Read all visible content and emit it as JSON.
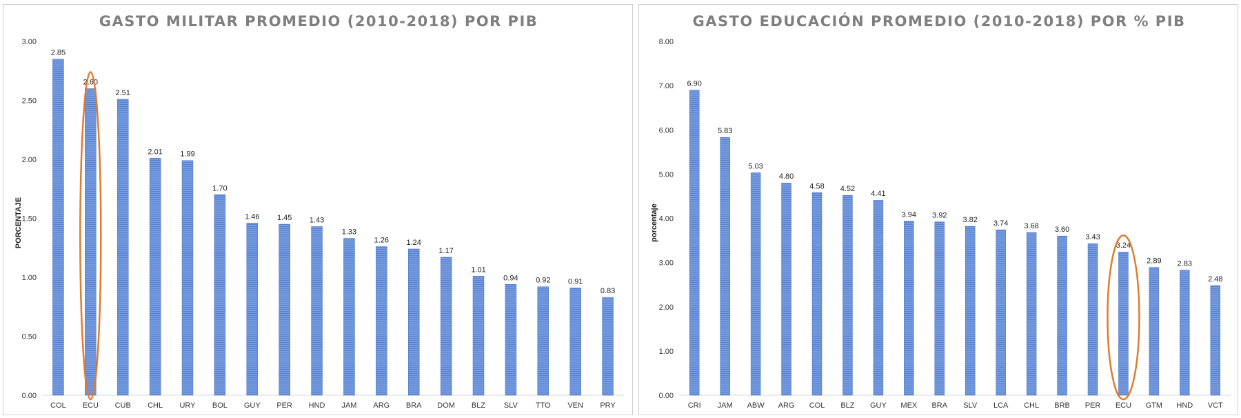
{
  "colors": {
    "bar": "#5b83d1",
    "bar_stripe": "#8fb0ea",
    "highlight": "#e07b2e",
    "axis": "#d9d9d9"
  },
  "chart_data": [
    {
      "type": "bar",
      "title": "GASTO MILITAR PROMEDIO (2010-2018) POR PIB",
      "xlabel": "",
      "ylabel": "PORCENTAJE",
      "ylim": [
        0,
        3
      ],
      "yticks": [
        "0.00",
        "0.50",
        "1.00",
        "1.50",
        "2.00",
        "2.50",
        "3.00"
      ],
      "grid": false,
      "categories": [
        "COL",
        "ECU",
        "CUB",
        "CHL",
        "URY",
        "BOL",
        "GUY",
        "PER",
        "HND",
        "JAM",
        "ARG",
        "BRA",
        "DOM",
        "BLZ",
        "SLV",
        "TTO",
        "VEN",
        "PRY"
      ],
      "values": [
        2.85,
        2.6,
        2.51,
        2.01,
        1.99,
        1.7,
        1.46,
        1.45,
        1.43,
        1.33,
        1.26,
        1.24,
        1.17,
        1.01,
        0.94,
        0.92,
        0.91,
        0.83
      ],
      "labels": [
        "2.85",
        "2.60",
        "2.51",
        "2.01",
        "1.99",
        "1.70",
        "1.46",
        "1.45",
        "1.43",
        "1.33",
        "1.26",
        "1.24",
        "1.17",
        "1.01",
        "0.94",
        "0.92",
        "0.91",
        "0.83"
      ],
      "highlight": "ECU"
    },
    {
      "type": "bar",
      "title": "GASTO EDUCACIÓN PROMEDIO (2010-2018) POR % PIB",
      "xlabel": "",
      "ylabel": "porcentaje",
      "ylim": [
        0,
        8
      ],
      "yticks": [
        "0.00",
        "1.00",
        "2.00",
        "3.00",
        "4.00",
        "5.00",
        "6.00",
        "7.00",
        "8.00"
      ],
      "grid": false,
      "categories": [
        "CRI",
        "JAM",
        "ABW",
        "ARG",
        "COL",
        "BLZ",
        "GUY",
        "MEX",
        "BRA",
        "SLV",
        "LCA",
        "CHL",
        "BRB",
        "PER",
        "ECU",
        "GTM",
        "HND",
        "VCT"
      ],
      "values": [
        6.9,
        5.83,
        5.03,
        4.8,
        4.58,
        4.52,
        4.41,
        3.94,
        3.92,
        3.82,
        3.74,
        3.68,
        3.6,
        3.43,
        3.24,
        2.89,
        2.83,
        2.48
      ],
      "labels": [
        "6.90",
        "5.83",
        "5.03",
        "4.80",
        "4.58",
        "4.52",
        "4.41",
        "3.94",
        "3.92",
        "3.82",
        "3.74",
        "3.68",
        "3.60",
        "3.43",
        "3.24",
        "2.89",
        "2.83",
        "2.48"
      ],
      "highlight": "ECU"
    }
  ]
}
